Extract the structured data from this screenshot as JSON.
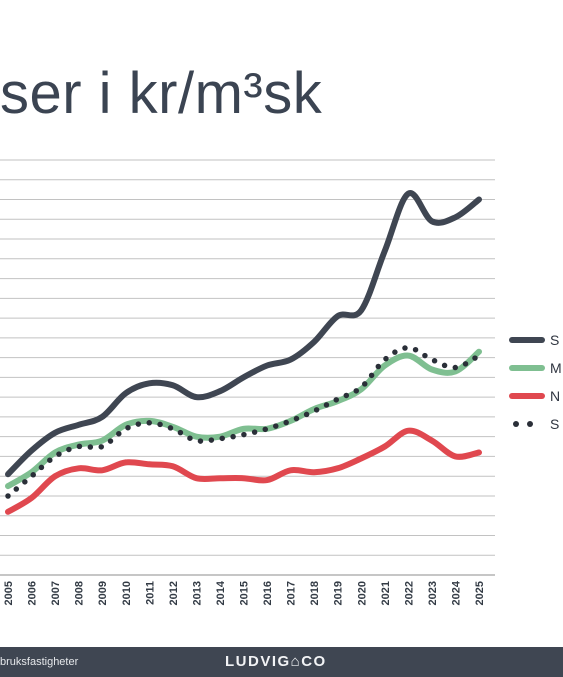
{
  "page": {
    "title": "ser i kr/m³sk",
    "footer_left": "bruksfastigheter",
    "footer_logo": "LUDVIG⌂CO"
  },
  "chart_data": {
    "type": "line",
    "title": "ser i kr/m³sk",
    "x": [
      "2005",
      "2006",
      "2007",
      "2008",
      "2009",
      "2010",
      "2011",
      "2012",
      "2013",
      "2014",
      "2015",
      "2016",
      "2017",
      "2018",
      "2019",
      "2020",
      "2021",
      "2022",
      "2023",
      "2024",
      "2025"
    ],
    "ylim": [
      0,
      21
    ],
    "grid": true,
    "legend_position": "right",
    "series": [
      {
        "name": "S",
        "color": "#3f4652",
        "style": "solid",
        "values": [
          5.1,
          6.3,
          7.2,
          7.6,
          8.0,
          9.2,
          9.7,
          9.6,
          9.0,
          9.3,
          10.0,
          10.6,
          10.9,
          11.8,
          13.1,
          13.4,
          16.4,
          19.3,
          17.9,
          18.1,
          19.0
        ]
      },
      {
        "name": "M",
        "color": "#7fbf91",
        "style": "solid",
        "values": [
          4.5,
          5.2,
          6.2,
          6.6,
          6.8,
          7.6,
          7.8,
          7.5,
          7.0,
          7.0,
          7.4,
          7.4,
          7.8,
          8.4,
          8.8,
          9.4,
          10.6,
          11.1,
          10.4,
          10.3,
          11.3
        ]
      },
      {
        "name": "N",
        "color": "#e0484f",
        "style": "solid",
        "values": [
          3.2,
          3.9,
          5.0,
          5.4,
          5.3,
          5.7,
          5.6,
          5.5,
          4.9,
          4.9,
          4.9,
          4.8,
          5.3,
          5.2,
          5.4,
          5.9,
          6.5,
          7.3,
          6.8,
          6.0,
          6.2
        ]
      },
      {
        "name": "S",
        "color": "#2a2f38",
        "style": "dotted",
        "values": [
          4.0,
          5.0,
          6.0,
          6.5,
          6.5,
          7.4,
          7.7,
          7.4,
          6.8,
          6.9,
          7.1,
          7.4,
          7.8,
          8.3,
          8.9,
          9.5,
          10.9,
          11.5,
          10.9,
          10.5,
          11.1
        ]
      }
    ]
  }
}
